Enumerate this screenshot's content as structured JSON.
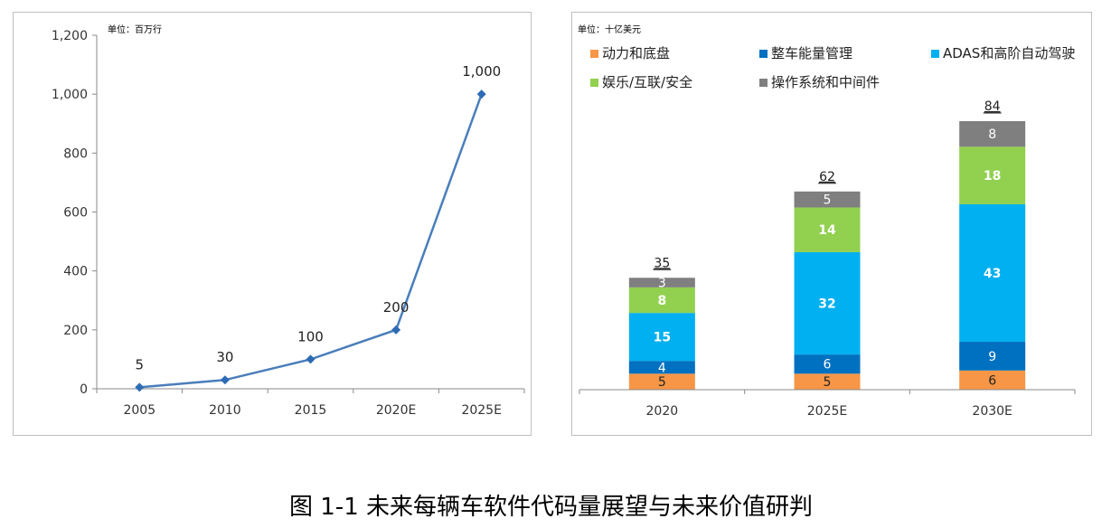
{
  "caption": "图 1-1 未来每辆车软件代码量展望与未来价值研判",
  "chart_data": [
    {
      "type": "line",
      "unit": "单位：百万行",
      "categories": [
        "2005",
        "2010",
        "2015",
        "2020E",
        "2025E"
      ],
      "values": [
        5,
        30,
        100,
        200,
        1000
      ],
      "data_labels": [
        "5",
        "30",
        "100",
        "200",
        "1,000"
      ],
      "ylim": [
        0,
        1200
      ],
      "yticks": [
        0,
        200,
        400,
        600,
        800,
        1000,
        1200
      ],
      "ytick_labels": [
        "0",
        "200",
        "400",
        "600",
        "800",
        "1,000",
        "1,200"
      ],
      "color": "#4a7ebb",
      "marker_color": "#2e6bb5"
    },
    {
      "type": "bar",
      "stacked": true,
      "unit": "单位：十亿美元",
      "categories": [
        "2020",
        "2025E",
        "2030E"
      ],
      "totals": [
        "35",
        "62",
        "84"
      ],
      "ymax": 84,
      "series": [
        {
          "name": "动力和底盘",
          "color": "#f79646",
          "values": [
            5,
            5,
            6
          ],
          "labels": [
            "5",
            "5",
            "6"
          ],
          "label_color": "#222",
          "bold": false
        },
        {
          "name": "整车能量管理",
          "color": "#0070c0",
          "values": [
            4,
            6,
            9
          ],
          "labels": [
            "4",
            "6",
            "9"
          ],
          "label_color": "#ffffff",
          "bold": false
        },
        {
          "name": "ADAS和高阶自动驾驶",
          "color": "#00b0f0",
          "values": [
            15,
            32,
            43
          ],
          "labels": [
            "15",
            "32",
            "43"
          ],
          "label_color": "#ffffff",
          "bold": true
        },
        {
          "name": "娱乐/互联/安全",
          "color": "#92d050",
          "values": [
            8,
            14,
            18
          ],
          "labels": [
            "8",
            "14",
            "18"
          ],
          "label_color": "#ffffff",
          "bold": true
        },
        {
          "name": "操作系统和中间件",
          "color": "#7f7f7f",
          "values": [
            3,
            5,
            8
          ],
          "labels": [
            "3",
            "5",
            "8"
          ],
          "label_color": "#ffffff",
          "bold": false
        }
      ]
    }
  ]
}
